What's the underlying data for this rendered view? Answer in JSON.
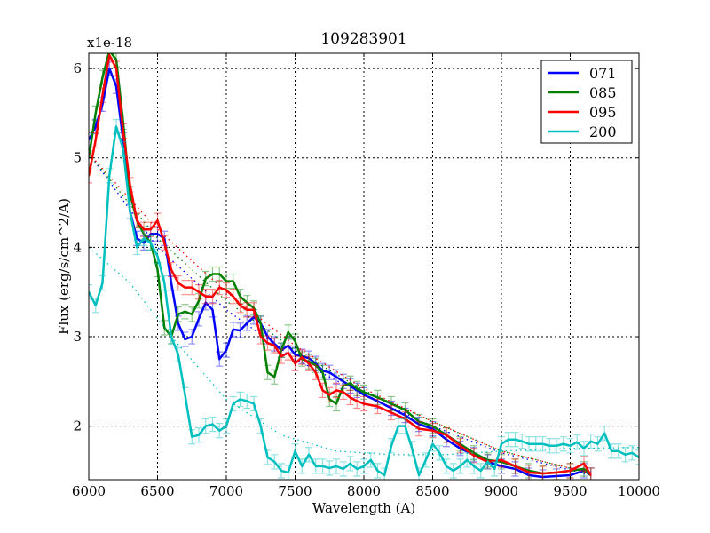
{
  "chart_data": {
    "type": "line",
    "title": "109283901",
    "xlabel": "Wavelength (A)",
    "ylabel": "Flux (erg/s/cm^2/A)",
    "y_multiplier": "x1e-18",
    "xlim": [
      6000,
      10000
    ],
    "ylim": [
      1.4,
      6.17
    ],
    "xticks": [
      6000,
      6500,
      7000,
      7500,
      8000,
      8500,
      9000,
      9500,
      10000
    ],
    "xtick_labels": [
      "6000",
      "6500",
      "7000",
      "7500",
      "8000",
      "8500",
      "9000",
      "9500",
      "10000"
    ],
    "yticks": [
      2,
      3,
      4,
      5,
      6
    ],
    "ytick_labels": [
      "2",
      "3",
      "4",
      "5",
      "6"
    ],
    "grid": true,
    "legend_position": "top-right",
    "error": 0.08,
    "series": [
      {
        "name": "071",
        "color": "#0000ff",
        "x": [
          6000,
          6050,
          6100,
          6150,
          6200,
          6250,
          6300,
          6350,
          6400,
          6450,
          6500,
          6550,
          6600,
          6650,
          6700,
          6750,
          6800,
          6850,
          6900,
          6950,
          7000,
          7050,
          7100,
          7150,
          7200,
          7250,
          7300,
          7350,
          7400,
          7450,
          7500,
          7550,
          7600,
          7650,
          7700,
          7750,
          7800,
          7850,
          7900,
          7950,
          8000,
          8100,
          8200,
          8300,
          8400,
          8500,
          8600,
          8700,
          8800,
          8900,
          9000,
          9100,
          9200,
          9300,
          9400,
          9500,
          9600,
          9650
        ],
        "y": [
          5.2,
          5.35,
          5.6,
          6.0,
          5.8,
          5.2,
          4.4,
          4.1,
          4.05,
          4.15,
          4.15,
          4.1,
          3.6,
          3.15,
          2.97,
          3.0,
          3.2,
          3.38,
          3.3,
          2.75,
          2.85,
          3.08,
          3.07,
          3.15,
          3.22,
          3.15,
          3.0,
          2.92,
          2.85,
          2.9,
          2.8,
          2.78,
          2.76,
          2.7,
          2.62,
          2.6,
          2.55,
          2.5,
          2.45,
          2.4,
          2.35,
          2.28,
          2.2,
          2.12,
          2.02,
          1.97,
          1.85,
          1.75,
          1.68,
          1.6,
          1.55,
          1.52,
          1.45,
          1.43,
          1.44,
          1.45,
          1.5,
          1.45
        ],
        "fit": {
          "x": [
            6000,
            6500,
            7000,
            7500,
            8000,
            8500,
            9000,
            9650
          ],
          "y": [
            5.05,
            4.0,
            3.3,
            2.75,
            2.35,
            2.0,
            1.7,
            1.45
          ]
        }
      },
      {
        "name": "085",
        "color": "#008000",
        "x": [
          6000,
          6050,
          6100,
          6150,
          6200,
          6250,
          6300,
          6350,
          6400,
          6450,
          6500,
          6550,
          6600,
          6650,
          6700,
          6750,
          6800,
          6850,
          6900,
          6950,
          7000,
          7050,
          7100,
          7150,
          7200,
          7250,
          7300,
          7350,
          7400,
          7450,
          7500,
          7550,
          7600,
          7650,
          7700,
          7750,
          7800,
          7850,
          7900,
          7950,
          8000,
          8100,
          8200,
          8300,
          8400,
          8500,
          8600,
          8700,
          8800,
          8900,
          9000,
          9100,
          9200,
          9300,
          9400,
          9500,
          9600,
          9650
        ],
        "y": [
          5.0,
          5.5,
          5.9,
          6.2,
          6.1,
          5.4,
          4.6,
          4.3,
          4.15,
          4.05,
          3.75,
          3.1,
          3.0,
          3.25,
          3.28,
          3.25,
          3.4,
          3.65,
          3.7,
          3.7,
          3.62,
          3.62,
          3.45,
          3.38,
          3.32,
          3.15,
          2.6,
          2.55,
          2.85,
          3.05,
          2.95,
          2.75,
          2.72,
          2.68,
          2.6,
          2.3,
          2.25,
          2.45,
          2.48,
          2.42,
          2.38,
          2.32,
          2.25,
          2.18,
          2.05,
          2.0,
          1.9,
          1.8,
          1.7,
          1.62,
          1.6,
          1.55,
          1.5,
          1.47,
          1.48,
          1.5,
          1.52,
          1.45
        ],
        "fit": {
          "x": [
            6000,
            6500,
            7000,
            7500,
            8000,
            8500,
            9000,
            9650
          ],
          "y": [
            5.05,
            4.1,
            3.4,
            2.85,
            2.4,
            2.05,
            1.72,
            1.47
          ]
        }
      },
      {
        "name": "095",
        "color": "#ff0000",
        "x": [
          6000,
          6050,
          6100,
          6150,
          6200,
          6250,
          6300,
          6350,
          6400,
          6450,
          6500,
          6550,
          6600,
          6650,
          6700,
          6750,
          6800,
          6850,
          6900,
          6950,
          7000,
          7050,
          7100,
          7150,
          7200,
          7250,
          7300,
          7350,
          7400,
          7450,
          7500,
          7550,
          7600,
          7650,
          7700,
          7750,
          7800,
          7850,
          7900,
          7950,
          8000,
          8100,
          8200,
          8300,
          8400,
          8500,
          8600,
          8700,
          8800,
          8900,
          9000,
          9100,
          9200,
          9300,
          9400,
          9500,
          9600,
          9650
        ],
        "y": [
          4.8,
          5.2,
          5.7,
          6.15,
          6.0,
          5.3,
          4.7,
          4.3,
          4.2,
          4.2,
          4.3,
          4.05,
          3.75,
          3.6,
          3.55,
          3.55,
          3.5,
          3.45,
          3.45,
          3.55,
          3.52,
          3.45,
          3.35,
          3.3,
          3.3,
          3.0,
          2.93,
          2.9,
          2.78,
          2.82,
          2.7,
          2.77,
          2.7,
          2.6,
          2.4,
          2.35,
          2.4,
          2.38,
          2.32,
          2.28,
          2.25,
          2.22,
          2.15,
          2.08,
          1.97,
          1.95,
          1.9,
          1.78,
          1.67,
          1.6,
          1.62,
          1.55,
          1.48,
          1.47,
          1.48,
          1.5,
          1.58,
          1.45
        ],
        "fit": {
          "x": [
            6000,
            6500,
            7000,
            7500,
            8000,
            8500,
            9000,
            9650
          ],
          "y": [
            5.05,
            4.2,
            3.5,
            2.9,
            2.42,
            2.05,
            1.72,
            1.47
          ]
        }
      },
      {
        "name": "200",
        "color": "#00bfbf",
        "x": [
          6000,
          6050,
          6100,
          6150,
          6200,
          6250,
          6300,
          6350,
          6400,
          6450,
          6500,
          6550,
          6600,
          6650,
          6700,
          6750,
          6800,
          6850,
          6900,
          6950,
          7000,
          7050,
          7100,
          7150,
          7200,
          7250,
          7300,
          7350,
          7400,
          7450,
          7500,
          7550,
          7600,
          7650,
          7700,
          7750,
          7800,
          7850,
          7900,
          7950,
          8000,
          8050,
          8100,
          8150,
          8200,
          8250,
          8300,
          8350,
          8400,
          8450,
          8500,
          8550,
          8600,
          8650,
          8700,
          8750,
          8800,
          8850,
          8900,
          8950,
          9000,
          9050,
          9100,
          9150,
          9200,
          9250,
          9300,
          9350,
          9400,
          9450,
          9500,
          9550,
          9600,
          9650,
          9700,
          9750,
          9800,
          9850,
          9900,
          9950,
          10000
        ],
        "y": [
          3.5,
          3.35,
          3.6,
          4.8,
          5.35,
          5.1,
          4.4,
          4.0,
          4.1,
          4.05,
          3.9,
          3.6,
          3.0,
          2.8,
          2.35,
          1.88,
          1.9,
          2.0,
          2.02,
          1.95,
          2.0,
          2.25,
          2.3,
          2.28,
          2.25,
          2.0,
          1.65,
          1.6,
          1.5,
          1.48,
          1.72,
          1.55,
          1.68,
          1.55,
          1.55,
          1.53,
          1.55,
          1.52,
          1.58,
          1.52,
          1.55,
          1.62,
          1.5,
          1.45,
          1.78,
          2.0,
          2.0,
          1.75,
          1.45,
          1.62,
          1.8,
          1.7,
          1.55,
          1.5,
          1.55,
          1.62,
          1.55,
          1.5,
          1.6,
          1.52,
          1.8,
          1.85,
          1.85,
          1.83,
          1.8,
          1.8,
          1.8,
          1.78,
          1.78,
          1.8,
          1.78,
          1.82,
          1.75,
          1.83,
          1.8,
          1.92,
          1.72,
          1.72,
          1.68,
          1.7,
          1.65
        ],
        "fit": {
          "x": [
            6000,
            6300,
            6600,
            7000,
            7400,
            7800,
            8200,
            8600,
            9000,
            9500,
            10000
          ],
          "y": [
            4.0,
            3.6,
            3.0,
            2.3,
            1.9,
            1.72,
            1.68,
            1.68,
            1.72,
            1.75,
            1.76
          ]
        }
      }
    ]
  }
}
